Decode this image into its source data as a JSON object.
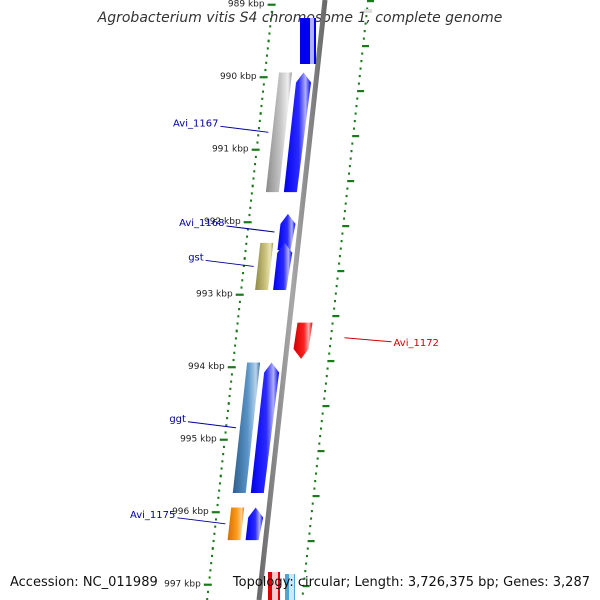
{
  "title": "Agrobacterium vitis S4 chromosome 1, complete genome",
  "accession_label": "Accession: NC_011989",
  "topology_label": "Topology: circular; Length: 3,726,375 bp; Genes: 3,287",
  "ticks": [
    {
      "label": "989 kbp",
      "kbp": 989
    },
    {
      "label": "990 kbp",
      "kbp": 990
    },
    {
      "label": "991 kbp",
      "kbp": 991
    },
    {
      "label": "992 kbp",
      "kbp": 992
    },
    {
      "label": "993 kbp",
      "kbp": 993
    },
    {
      "label": "994 kbp",
      "kbp": 994
    },
    {
      "label": "995 kbp",
      "kbp": 995
    },
    {
      "label": "996 kbp",
      "kbp": 996
    },
    {
      "label": "997 kbp",
      "kbp": 997
    }
  ],
  "genes": [
    {
      "label": "Avi_1167",
      "strand": "forward",
      "start_kbp": 989.95,
      "end_kbp": 991.6,
      "color": "#0000ee",
      "cog_color": "#b4b4b4"
    },
    {
      "label": "Avi_1168",
      "strand": "forward",
      "start_kbp": 991.9,
      "end_kbp": 992.4,
      "color": "#0000ee",
      "cog_color": ""
    },
    {
      "label": "gst",
      "strand": "forward",
      "start_kbp": 992.3,
      "end_kbp": 992.95,
      "color": "#0000ee",
      "cog_color": "#bdb36b"
    },
    {
      "label": "Avi_1172",
      "strand": "reverse",
      "start_kbp": 993.4,
      "end_kbp": 993.9,
      "color": "#ee0000",
      "cog_color": ""
    },
    {
      "label": "ggt",
      "strand": "forward",
      "start_kbp": 993.95,
      "end_kbp": 995.75,
      "color": "#0000ee",
      "cog_color": "#4682b4"
    },
    {
      "label": "Avi_1175",
      "strand": "forward",
      "start_kbp": 995.95,
      "end_kbp": 996.4,
      "color": "#0000ee",
      "cog_color": "#ff8c00"
    }
  ],
  "colors": {
    "backbone": "#8c8c8c",
    "tick_green": "#1a7a1a",
    "forward_label": "#00009c",
    "reverse_label": "#d20000"
  }
}
